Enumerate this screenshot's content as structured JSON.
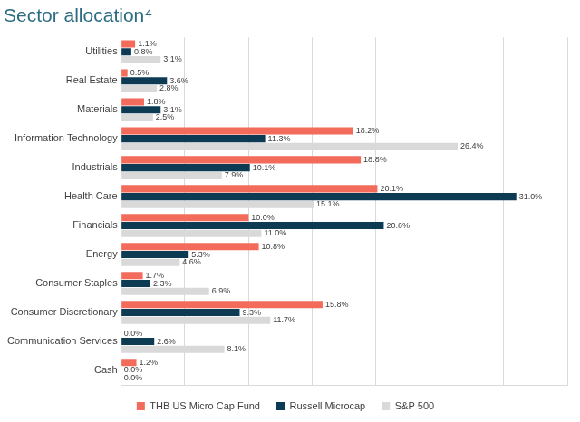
{
  "chart_data": {
    "type": "bar",
    "title": "Sector allocation⁴",
    "orientation": "horizontal",
    "categories": [
      "Utilities",
      "Real Estate",
      "Materials",
      "Information Technology",
      "Industrials",
      "Health Care",
      "Financials",
      "Energy",
      "Consumer Staples",
      "Consumer Discretionary",
      "Communication Services",
      "Cash"
    ],
    "series": [
      {
        "name": "THB US Micro Cap Fund",
        "color": "#f26b5b",
        "values": [
          1.1,
          0.5,
          1.8,
          18.2,
          18.8,
          20.1,
          10.0,
          10.8,
          1.7,
          15.8,
          0.0,
          1.2
        ],
        "value_labels": [
          "1.1%",
          "0.5%",
          "1.8%",
          "18.2%",
          "18.8%",
          "20.1%",
          "10.0%",
          "10.8%",
          "1.7%",
          "15.8%",
          "0.0%",
          "1.2%"
        ]
      },
      {
        "name": "Russell Microcap",
        "color": "#0d3b54",
        "values": [
          0.8,
          3.6,
          3.1,
          11.3,
          10.1,
          31.0,
          20.6,
          5.3,
          2.3,
          9.3,
          2.6,
          0.0
        ],
        "value_labels": [
          "0.8%",
          "3.6%",
          "3.1%",
          "11.3%",
          "10.1%",
          "31.0%",
          "20.6%",
          "5.3%",
          "2.3%",
          "9.3%",
          "2.6%",
          "0.0%"
        ]
      },
      {
        "name": "S&P 500",
        "color": "#d9d9d9",
        "values": [
          3.1,
          2.8,
          2.5,
          26.4,
          7.9,
          15.1,
          11.0,
          4.6,
          6.9,
          11.7,
          8.1,
          0.0
        ],
        "value_labels": [
          "3.1%",
          "2.8%",
          "2.5%",
          "26.4%",
          "7.9%",
          "15.1%",
          "11.0%",
          "4.6%",
          "6.9%",
          "11.7%",
          "8.1%",
          "0.0%"
        ]
      }
    ],
    "xlim": [
      0,
      35
    ],
    "xticks": [
      0,
      5,
      10,
      15,
      20,
      25,
      30,
      35
    ],
    "grid": true,
    "legend": "bottom",
    "data_labels": true,
    "tick_labels": "y"
  }
}
